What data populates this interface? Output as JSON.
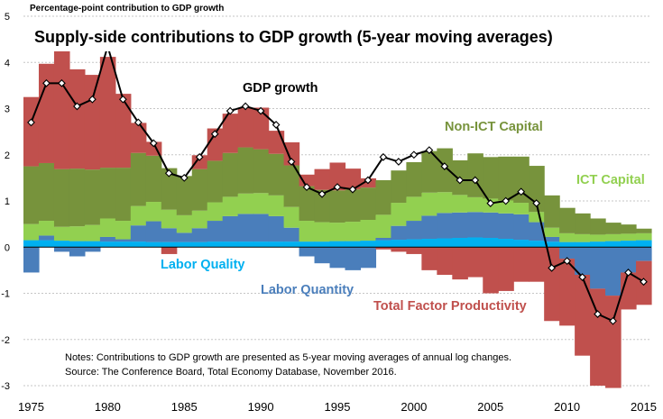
{
  "chart_data": {
    "type": "stacked-bar-with-line",
    "title": "Supply-side contributions to GDP growth (5-year moving averages)",
    "ylabel": "Percentage-point contribution to GDP growth",
    "ylim": [
      -3,
      5
    ],
    "yticks": [
      -3,
      -2,
      -1,
      0,
      1,
      2,
      3,
      4,
      5
    ],
    "xticks": [
      1975,
      1980,
      1985,
      1990,
      1995,
      2000,
      2005,
      2010,
      2015
    ],
    "years": [
      1975,
      1976,
      1977,
      1978,
      1979,
      1980,
      1981,
      1982,
      1983,
      1984,
      1985,
      1986,
      1987,
      1988,
      1989,
      1990,
      1991,
      1992,
      1993,
      1994,
      1995,
      1996,
      1997,
      1998,
      1999,
      2000,
      2001,
      2002,
      2003,
      2004,
      2005,
      2006,
      2007,
      2008,
      2009,
      2010,
      2011,
      2012,
      2013,
      2014,
      2015
    ],
    "series": [
      {
        "name": "Labor Quality",
        "color": "#00b0f0",
        "values": [
          0.15,
          0.15,
          0.14,
          0.13,
          0.13,
          0.12,
          0.12,
          0.12,
          0.11,
          0.11,
          0.11,
          0.11,
          0.12,
          0.12,
          0.12,
          0.12,
          0.12,
          0.12,
          0.12,
          0.12,
          0.13,
          0.13,
          0.14,
          0.15,
          0.16,
          0.17,
          0.18,
          0.19,
          0.2,
          0.21,
          0.2,
          0.18,
          0.16,
          0.14,
          0.12,
          0.11,
          0.11,
          0.12,
          0.13,
          0.14,
          0.15
        ]
      },
      {
        "name": "Labor Quantity",
        "color": "#4a7ebb",
        "values": [
          -0.55,
          0.1,
          -0.1,
          -0.2,
          -0.1,
          0.1,
          0.05,
          0.35,
          0.45,
          0.3,
          0.2,
          0.3,
          0.45,
          0.55,
          0.6,
          0.6,
          0.55,
          0.3,
          -0.2,
          -0.35,
          -0.45,
          -0.5,
          -0.45,
          0.05,
          0.3,
          0.4,
          0.5,
          0.55,
          0.55,
          0.55,
          0.55,
          0.55,
          0.55,
          0.4,
          0.1,
          -0.25,
          -0.6,
          -0.9,
          -1.05,
          -0.55,
          -0.3
        ]
      },
      {
        "name": "ICT Capital",
        "color": "#92d050",
        "values": [
          0.35,
          0.32,
          0.3,
          0.32,
          0.35,
          0.4,
          0.4,
          0.42,
          0.42,
          0.4,
          0.38,
          0.38,
          0.4,
          0.42,
          0.44,
          0.45,
          0.45,
          0.45,
          0.45,
          0.42,
          0.4,
          0.42,
          0.45,
          0.5,
          0.5,
          0.52,
          0.5,
          0.45,
          0.38,
          0.32,
          0.3,
          0.28,
          0.25,
          0.22,
          0.2,
          0.19,
          0.17,
          0.15,
          0.15,
          0.15,
          0.15
        ]
      },
      {
        "name": "Non-ICT Capital",
        "color": "#77933c",
        "values": [
          1.25,
          1.25,
          1.25,
          1.25,
          1.2,
          1.1,
          1.15,
          1.15,
          1.0,
          0.9,
          0.85,
          0.9,
          0.9,
          0.95,
          1.0,
          0.95,
          0.9,
          0.9,
          0.75,
          0.7,
          0.7,
          0.7,
          0.7,
          0.75,
          0.7,
          0.75,
          0.9,
          0.95,
          0.75,
          0.95,
          0.9,
          0.95,
          1.0,
          1.0,
          0.7,
          0.55,
          0.45,
          0.35,
          0.25,
          0.2,
          0.1
        ]
      },
      {
        "name": "Total Factor Productivity",
        "color": "#c0504d",
        "values": [
          1.5,
          2.15,
          2.55,
          2.15,
          2.05,
          2.4,
          1.6,
          0.65,
          0.3,
          -0.15,
          0.0,
          0.3,
          0.7,
          0.85,
          0.85,
          0.9,
          0.5,
          0.5,
          0.25,
          0.45,
          0.6,
          0.45,
          0.2,
          -0.05,
          -0.1,
          -0.15,
          -0.5,
          -0.6,
          -0.7,
          -0.65,
          -1.0,
          -0.95,
          -0.75,
          -0.75,
          -1.6,
          -1.45,
          -1.75,
          -2.1,
          -2.0,
          -0.8,
          -0.95
        ]
      }
    ],
    "line": {
      "name": "GDP growth",
      "color": "#000000",
      "values": [
        2.7,
        3.55,
        3.55,
        3.05,
        3.2,
        4.35,
        3.2,
        2.7,
        2.25,
        1.6,
        1.5,
        1.95,
        2.45,
        2.95,
        3.05,
        2.95,
        2.65,
        1.85,
        1.3,
        1.15,
        1.3,
        1.25,
        1.45,
        1.95,
        1.85,
        2.0,
        2.1,
        1.75,
        1.45,
        1.45,
        0.95,
        1.0,
        1.2,
        0.95,
        -0.45,
        -0.3,
        -0.65,
        -1.45,
        -1.6,
        -0.55,
        -0.75
      ]
    },
    "annotations": {
      "gdp": "GDP growth",
      "nonict": "Non-ICT Capital",
      "ict": "ICT Capital",
      "lq": "Labor Quality",
      "lqty": "Labor Quantity",
      "tfp": "Total Factor Productivity"
    },
    "notes": [
      "Notes: Contributions to GDP growth are presented as 5-year moving averages of annual log changes.",
      "Source: The Conference Board, Total Economy Database, November 2016."
    ]
  }
}
